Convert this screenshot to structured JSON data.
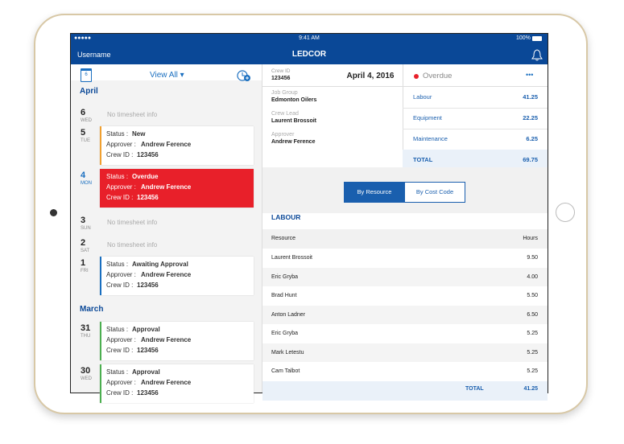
{
  "status_bar": {
    "signal": "●●●●●",
    "time": "9:41 AM",
    "battery": "100%"
  },
  "nav": {
    "username": "Username",
    "brand": "LEDCOR"
  },
  "sidebar": {
    "calendar_day": "6",
    "filter": "View All",
    "card_labels": {
      "status": "Status :",
      "approver": "Approver :",
      "crew_id": "Crew ID :"
    },
    "sections": [
      {
        "title": "April",
        "days": [
          {
            "day": "6",
            "weekday": "WED",
            "empty": "No timesheet info"
          },
          {
            "day": "5",
            "weekday": "TUE",
            "card": {
              "status": "New",
              "approver": "Andrew Ference",
              "crew_id": "123456",
              "accent": "#f0a030"
            }
          },
          {
            "day": "4",
            "weekday": "MON",
            "selected": true,
            "card": {
              "status": "Overdue",
              "approver": "Andrew Ference",
              "crew_id": "123456",
              "accent": "#e8202a"
            }
          },
          {
            "day": "3",
            "weekday": "SUN",
            "empty": "No timesheet info"
          },
          {
            "day": "2",
            "weekday": "SAT",
            "empty": "No timesheet info"
          },
          {
            "day": "1",
            "weekday": "FRI",
            "card": {
              "status": "Awaiting Approval",
              "approver": "Andrew Ference",
              "crew_id": "123456",
              "accent": "#1a6fc0"
            }
          }
        ]
      },
      {
        "title": "March",
        "days": [
          {
            "day": "31",
            "weekday": "THU",
            "card": {
              "status": "Approval",
              "approver": "Andrew Ference",
              "crew_id": "123456",
              "accent": "#4caf50"
            }
          },
          {
            "day": "30",
            "weekday": "WED",
            "card": {
              "status": "Approval",
              "approver": "Andrew Ference",
              "crew_id": "123456",
              "accent": "#4caf50"
            }
          }
        ]
      }
    ]
  },
  "detail": {
    "crew_id_label": "Crew ID",
    "crew_id": "123456",
    "date": "April 4, 2016",
    "state": "Overdue",
    "more": "•••",
    "info": [
      {
        "label": "Job Group",
        "value": "Edmonton Oilers"
      },
      {
        "label": "Crew Lead",
        "value": "Laurent Brossoit"
      },
      {
        "label": "Approver",
        "value": "Andrew Ference"
      }
    ],
    "summary": [
      {
        "label": "Labour",
        "value": "41.25"
      },
      {
        "label": "Equipment",
        "value": "22.25"
      },
      {
        "label": "Maintenance",
        "value": "6.25"
      },
      {
        "label": "TOTAL",
        "value": "69.75"
      }
    ],
    "tabs": [
      "By Resource",
      "By Cost Code"
    ],
    "section": "LABOUR",
    "table": {
      "header": [
        "Resource",
        "Hours"
      ],
      "rows": [
        [
          "Laurent Brossoit",
          "9.50"
        ],
        [
          "Eric Gryba",
          "4.00"
        ],
        [
          "Brad Hunt",
          "5.50"
        ],
        [
          "Anton Ladner",
          "6.50"
        ],
        [
          "Eric Gryba",
          "5.25"
        ],
        [
          "Mark Letestu",
          "5.25"
        ],
        [
          "Cam Talbot",
          "5.25"
        ]
      ],
      "total": [
        "TOTAL",
        "41.25"
      ]
    }
  }
}
